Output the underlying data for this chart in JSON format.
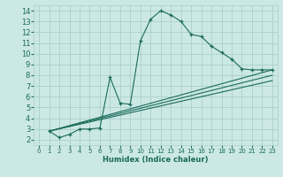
{
  "xlabel": "Humidex (Indice chaleur)",
  "background_color": "#cce8e5",
  "grid_color": "#aacfcc",
  "line_color": "#1a6b5a",
  "xlim": [
    -0.5,
    23.5
  ],
  "ylim": [
    1.5,
    14.5
  ],
  "xticks": [
    0,
    1,
    2,
    3,
    4,
    5,
    6,
    7,
    8,
    9,
    10,
    11,
    12,
    13,
    14,
    15,
    16,
    17,
    18,
    19,
    20,
    21,
    22,
    23
  ],
  "yticks": [
    2,
    3,
    4,
    5,
    6,
    7,
    8,
    9,
    10,
    11,
    12,
    13,
    14
  ],
  "lines": [
    {
      "x": [
        1,
        2,
        3,
        4,
        5,
        6,
        7,
        8,
        9,
        10,
        11,
        12,
        13,
        14,
        15,
        16,
        17,
        18,
        19,
        20,
        21,
        22,
        23
      ],
      "y": [
        2.8,
        2.2,
        2.5,
        3.0,
        3.0,
        3.1,
        7.8,
        5.4,
        5.3,
        11.2,
        13.2,
        14.0,
        13.6,
        13.0,
        11.8,
        11.6,
        10.7,
        10.1,
        9.5,
        8.6,
        8.5,
        8.5,
        8.5
      ],
      "marker": true
    },
    {
      "x": [
        1,
        23
      ],
      "y": [
        2.8,
        8.5
      ],
      "marker": false
    },
    {
      "x": [
        1,
        23
      ],
      "y": [
        2.8,
        8.0
      ],
      "marker": false
    },
    {
      "x": [
        1,
        23
      ],
      "y": [
        2.8,
        7.5
      ],
      "marker": false
    }
  ]
}
